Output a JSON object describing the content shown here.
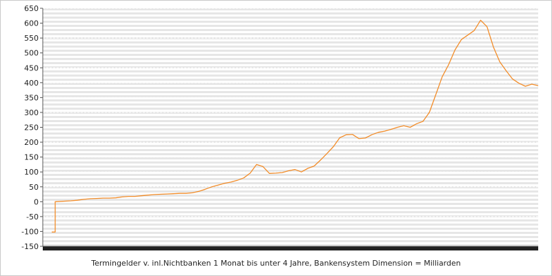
{
  "chart_data": {
    "type": "line",
    "title": "",
    "xlabel": "Termingelder v. inl.Nichtbanken 1 Monat bis unter 4 Jahre, Bankensystem Dimension = Milliarden",
    "ylabel": "",
    "ylim": [
      -150,
      650
    ],
    "yticks": [
      -150,
      -100,
      -50,
      0,
      50,
      100,
      150,
      200,
      250,
      300,
      350,
      400,
      450,
      500,
      550,
      600,
      650
    ],
    "grid": true,
    "legend": "none",
    "line_color": "#f28c28",
    "series": [
      {
        "values": [
          -102,
          -102,
          0,
          3,
          5,
          8,
          10,
          11,
          12,
          12,
          13,
          16,
          18,
          18,
          20,
          22,
          24,
          25,
          26,
          27,
          28,
          28,
          30,
          35,
          42,
          50,
          56,
          62,
          66,
          72,
          80,
          96,
          125,
          118,
          95,
          96,
          98,
          104,
          108,
          100,
          112,
          120,
          140,
          162,
          185,
          215,
          225,
          226,
          212,
          214,
          225,
          233,
          237,
          243,
          250,
          255,
          250,
          262,
          270,
          300,
          360,
          420,
          460,
          510,
          545,
          560,
          575,
          610,
          588,
          520,
          470,
          440,
          412,
          398,
          388,
          395,
          390
        ]
      }
    ]
  },
  "caption": "Termingelder v. inl.Nichtbanken 1 Monat bis unter 4 Jahre, Bankensystem Dimension = Milliarden"
}
